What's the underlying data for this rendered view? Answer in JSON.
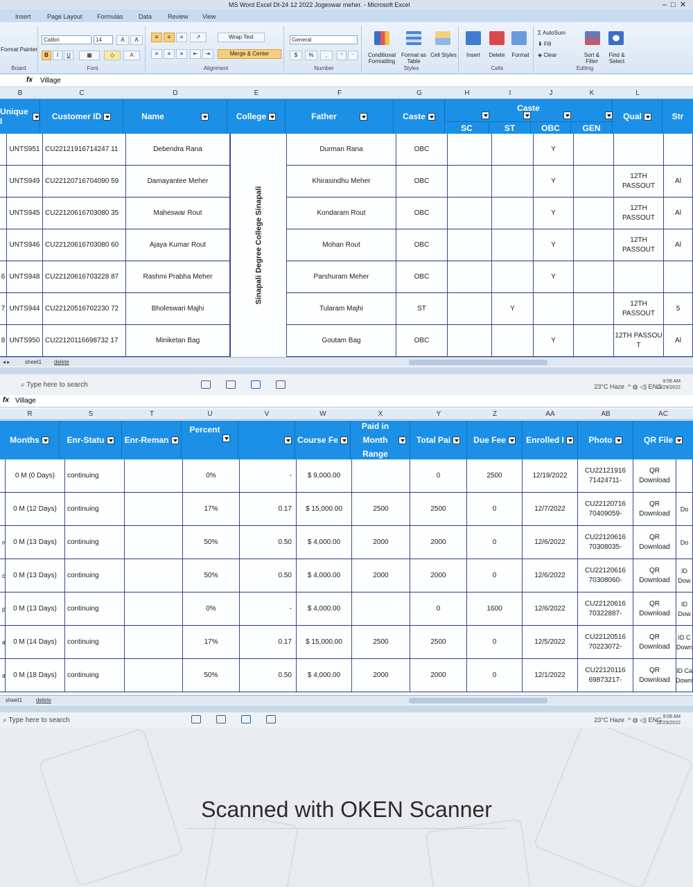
{
  "window": {
    "title": "MS Word Excel  Dt-24 12 2022  Jogeswar meher. - Microsoft Excel"
  },
  "ribbon": {
    "tabs": [
      "Insert",
      "Page Layout",
      "Formulas",
      "Data",
      "Review",
      "View"
    ],
    "clipboard": {
      "painter": "Format Painter",
      "label": "Board"
    },
    "font": {
      "name": "Calibri",
      "size": "14",
      "label": "Font"
    },
    "alignment": {
      "wrap": "Wrap Text",
      "merge": "Merge & Center",
      "label": "Alignment"
    },
    "number": {
      "format": "General",
      "currency": "$",
      "percent": "%",
      "comma": ",",
      "label": "Number"
    },
    "styles": {
      "conditional": "Conditional Formatting",
      "table": "Format as Table",
      "cell": "Cell Styles",
      "label": "Styles"
    },
    "cells": {
      "insert": "Insert",
      "delete": "Delete",
      "format": "Format",
      "label": "Cells"
    },
    "editing": {
      "autosum": "AutoSum",
      "fill": "Fill",
      "clear": "Clear",
      "sort": "Sort & Filter",
      "find": "Find & Select",
      "label": "Editing"
    }
  },
  "formula_bar": {
    "fx": "fx",
    "value": "Village"
  },
  "top_sheet": {
    "columns": [
      "B",
      "C",
      "D",
      "E",
      "F",
      "G",
      "H",
      "I",
      "J",
      "K",
      "L"
    ],
    "headers": {
      "unique": "Unique I",
      "customer": "Customer ID",
      "name": "Name",
      "college": "College",
      "father": "Father",
      "caste": "Caste",
      "caste_group": "Caste",
      "sc": "SC",
      "st": "ST",
      "obc": "OBC",
      "gen": "GEN",
      "qual": "Qual",
      "str": "Str"
    },
    "college_merged": "Sinapali Degree College Sinapali",
    "rows": [
      {
        "num": "",
        "unique": "UNTS951",
        "cid": "CU22121916714247 11",
        "name": "Debendra Rana",
        "father": "Durman Rana",
        "caste": "OBC",
        "sc": "",
        "st": "",
        "obc": "Y",
        "gen": "",
        "qual": "",
        "str": ""
      },
      {
        "num": "",
        "unique": "UNTS949",
        "cid": "CU22120716704090 59",
        "name": "Damayantee Meher",
        "father": "Khirasindhu Meher",
        "caste": "OBC",
        "sc": "",
        "st": "",
        "obc": "Y",
        "gen": "",
        "qual": "12TH PASSOUT",
        "str": "Al"
      },
      {
        "num": "",
        "unique": "UNTS945",
        "cid": "CU22120616703080 35",
        "name": "Maheswar Rout",
        "father": "Kondaram Rout",
        "caste": "OBC",
        "sc": "",
        "st": "",
        "obc": "Y",
        "gen": "",
        "qual": "12TH PASSOUT",
        "str": "Al"
      },
      {
        "num": "",
        "unique": "UNTS946",
        "cid": "CU22120616703080 60",
        "name": "Ajaya Kumar Rout",
        "father": "Mohan Rout",
        "caste": "OBC",
        "sc": "",
        "st": "",
        "obc": "Y",
        "gen": "",
        "qual": "12TH PASSOUT",
        "str": "Al"
      },
      {
        "num": "6",
        "unique": "UNTS948",
        "cid": "CU22120616703228 87",
        "name": "Rashmi Prabha Meher",
        "father": "Parshuram Meher",
        "caste": "OBC",
        "sc": "",
        "st": "",
        "obc": "Y",
        "gen": "",
        "qual": "",
        "str": ""
      },
      {
        "num": "7",
        "unique": "UNTS944",
        "cid": "CU22120516702230 72",
        "name": "Bholeswari Majhi",
        "father": "Tularam Majhi",
        "caste": "ST",
        "sc": "",
        "st": "Y",
        "obc": "",
        "gen": "",
        "qual": "12TH PASSOUT",
        "str": "5"
      },
      {
        "num": "8",
        "unique": "UNTS950",
        "cid": "CU22120116698732 17",
        "name": "Miniketan Bag",
        "father": "Goutam Bag",
        "caste": "OBC",
        "sc": "",
        "st": "",
        "obc": "Y",
        "gen": "",
        "qual": "12TH PASSOU T",
        "str": "Al"
      }
    ],
    "sheet_tabs": [
      "sheet1",
      "delete"
    ]
  },
  "bottom_sheet": {
    "columns": [
      "R",
      "S",
      "T",
      "U",
      "V",
      "W",
      "X",
      "Y",
      "Z",
      "AA",
      "AB",
      "AC"
    ],
    "headers": {
      "months": "Months",
      "status": "Enr-Statu",
      "remark": "Enr-Reman",
      "percent": "Percent",
      "course": "Course Fe",
      "paid_month": "Paid in Month Range",
      "total_paid": "Total Pai",
      "due": "Due Fee",
      "enrolled": "Enrolled I",
      "photo": "Photo",
      "qr": "QR File"
    },
    "rows": [
      {
        "prefix": "",
        "months": "0 M (0 Days)",
        "status": "continuing",
        "remark": "",
        "percent": "0%",
        "v": "-",
        "course": "$  9,000.00",
        "paid_month": "",
        "total_paid": "0",
        "due": "2500",
        "enrolled": "12/19/2022",
        "photo": "CU22121916 71424711-",
        "qr": "QR Download",
        "edge": ""
      },
      {
        "prefix": "",
        "months": "0 M (12 Days)",
        "status": "continuing",
        "remark": "",
        "percent": "17%",
        "v": "0.17",
        "course": "$ 15,000.00",
        "paid_month": "2500",
        "total_paid": "2500",
        "due": "0",
        "enrolled": "12/7/2022",
        "photo": "CU22120716 70409059-",
        "qr": "QR Download",
        "edge": "Do"
      },
      {
        "prefix": "re",
        "months": "0 M (13 Days)",
        "status": "continuing",
        "remark": "",
        "percent": "50%",
        "v": "0.50",
        "course": "$  4,000.00",
        "paid_month": "2000",
        "total_paid": "2000",
        "due": "0",
        "enrolled": "12/6/2022",
        "photo": "CU22120616 70308035-",
        "qr": "QR Download",
        "edge": "Do"
      },
      {
        "prefix": "ore",
        "months": "0 M (13 Days)",
        "status": "continuing",
        "remark": "",
        "percent": "50%",
        "v": "0.50",
        "course": "$  4,000.00",
        "paid_month": "2000",
        "total_paid": "2000",
        "due": "0",
        "enrolled": "12/6/2022",
        "photo": "CU22120616 70308060-",
        "qr": "QR Download",
        "edge": "ID Dow"
      },
      {
        "prefix": "pali",
        "months": "0 M (13 Days)",
        "status": "continuing",
        "remark": "",
        "percent": "0%",
        "v": "-",
        "course": "$  4,000.00",
        "paid_month": "",
        "total_paid": "0",
        "due": "1600",
        "enrolled": "12/6/2022",
        "photo": "CU22120616 70322887-",
        "qr": "QR Download",
        "edge": "ID Dow"
      },
      {
        "prefix": "albod",
        "months": "0 M (14 Days)",
        "status": "continuing",
        "remark": "",
        "percent": "17%",
        "v": "0.17",
        "course": "$ 15,000.00",
        "paid_month": "2500",
        "total_paid": "2500",
        "due": "0",
        "enrolled": "12/5/2022",
        "photo": "CU22120516 70223072-",
        "qr": "QR Download",
        "edge": "ID C Down"
      },
      {
        "prefix": "amunda",
        "months": "0 M (18 Days)",
        "status": "continuing",
        "remark": "",
        "percent": "50%",
        "v": "0.50",
        "course": "$  4,000.00",
        "paid_month": "2000",
        "total_paid": "2000",
        "due": "0",
        "enrolled": "12/1/2022",
        "photo": "CU22120116 69873217-",
        "qr": "QR Download",
        "edge": "ID Ca Downl"
      }
    ],
    "sheet_tabs": [
      "sheet1",
      "delete"
    ]
  },
  "taskbar": {
    "search_placeholder": "Type here to search",
    "weather": "23°C Haze",
    "lang": "ENG",
    "time": "9:08 AM",
    "date": "12/29/2022"
  },
  "scanner": {
    "watermark": "Scanned with OKEN Scanner"
  },
  "colors": {
    "header_blue": "#1c8fe6",
    "grid_line": "#3a4a90",
    "ribbon": "#dbe7f5"
  }
}
